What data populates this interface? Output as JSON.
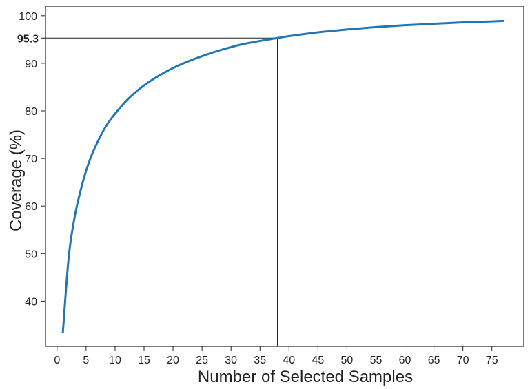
{
  "chart_data": {
    "type": "line",
    "xlabel": "Number of Selected Samples",
    "ylabel": "Coverage (%)",
    "xlim": [
      -2,
      80.5
    ],
    "ylim": [
      30.5,
      102
    ],
    "x_ticks": [
      0,
      5,
      10,
      15,
      20,
      25,
      30,
      35,
      40,
      45,
      50,
      55,
      60,
      65,
      70,
      75
    ],
    "y_ticks": [
      40,
      50,
      60,
      70,
      80,
      90,
      100
    ],
    "grid": false,
    "line_color": "#2176b5",
    "reference": {
      "x": 38,
      "y": 95.3,
      "label": "95.3"
    },
    "series": [
      {
        "x": [
          1,
          2,
          3,
          4,
          5,
          6,
          7,
          8,
          9,
          10,
          12,
          14,
          16,
          18,
          20,
          22,
          25,
          28,
          30,
          32,
          35,
          38,
          40,
          45,
          50,
          55,
          60,
          65,
          70,
          75,
          77
        ],
        "values": [
          33.5,
          49.2,
          57.5,
          63.0,
          67.4,
          70.8,
          73.5,
          75.9,
          77.8,
          79.4,
          82.2,
          84.4,
          86.2,
          87.7,
          89.0,
          90.1,
          91.5,
          92.7,
          93.4,
          94.0,
          94.7,
          95.3,
          95.7,
          96.5,
          97.1,
          97.6,
          98.0,
          98.3,
          98.6,
          98.8,
          98.9
        ]
      }
    ]
  }
}
